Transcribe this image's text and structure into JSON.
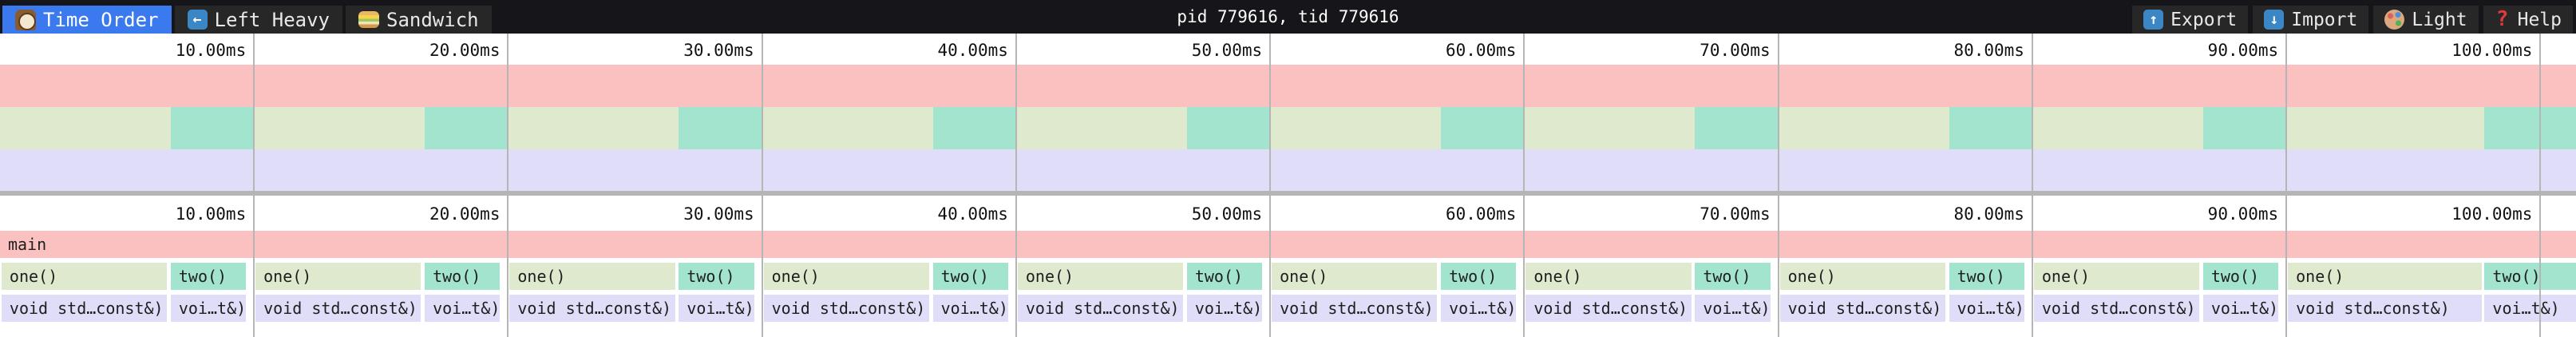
{
  "toolbar": {
    "tabs": [
      {
        "label": "Time Order",
        "icon": "clock-icon",
        "active": true
      },
      {
        "label": "Left Heavy",
        "icon": "left-arrow-icon",
        "active": false
      },
      {
        "label": "Sandwich",
        "icon": "sandwich-icon",
        "active": false
      }
    ],
    "title": "pid 779616, tid 779616",
    "actions": [
      {
        "label": "Export",
        "icon": "export-icon"
      },
      {
        "label": "Import",
        "icon": "import-icon"
      },
      {
        "label": "Light",
        "icon": "palette-icon"
      },
      {
        "label": "Help",
        "icon": "help-icon"
      }
    ]
  },
  "colors": {
    "accent": "#3B79EF",
    "toolbar_bg": "#15151A",
    "tab_bg": "#272727",
    "frame_main": "#FBC1C1",
    "frame_one": "#DFE9CE",
    "frame_two": "#A2E4CE",
    "frame_child": "#DFDDF8",
    "gridline": "#B5B5B5",
    "divider": "#B5B5B5",
    "frame_text": "#1E1E1E"
  },
  "chart_data": {
    "type": "flamegraph",
    "time_unit": "ms",
    "visible_range_ms": [
      0,
      101.4
    ],
    "tick_interval_ms": 10,
    "grid": true,
    "ticks": [
      {
        "ms": 10,
        "label": "10.00ms"
      },
      {
        "ms": 20,
        "label": "20.00ms"
      },
      {
        "ms": 30,
        "label": "30.00ms"
      },
      {
        "ms": 40,
        "label": "40.00ms"
      },
      {
        "ms": 50,
        "label": "50.00ms"
      },
      {
        "ms": 60,
        "label": "60.00ms"
      },
      {
        "ms": 70,
        "label": "70.00ms"
      },
      {
        "ms": 80,
        "label": "80.00ms"
      },
      {
        "ms": 90,
        "label": "90.00ms"
      },
      {
        "ms": 100,
        "label": "100.00ms"
      }
    ],
    "labels": {
      "root": "main",
      "one": "one()",
      "two": "two()",
      "one_child": "void std…const&)",
      "two_child": "voi…t&)"
    },
    "root_frame_ms": [
      0,
      101.5
    ],
    "pairs": [
      {
        "one": [
          0.06,
          6.57
        ],
        "two": [
          6.72,
          9.68
        ]
      },
      {
        "one": [
          10.06,
          16.57
        ],
        "two": [
          16.72,
          19.68
        ]
      },
      {
        "one": [
          20.06,
          26.57
        ],
        "two": [
          26.72,
          29.68
        ]
      },
      {
        "one": [
          30.06,
          36.57
        ],
        "two": [
          36.72,
          39.68
        ]
      },
      {
        "one": [
          40.06,
          46.57
        ],
        "two": [
          46.72,
          49.68
        ]
      },
      {
        "one": [
          50.06,
          56.57
        ],
        "two": [
          56.72,
          59.68
        ]
      },
      {
        "one": [
          60.06,
          66.57
        ],
        "two": [
          66.72,
          69.68
        ]
      },
      {
        "one": [
          70.06,
          76.57
        ],
        "two": [
          76.72,
          79.68
        ]
      },
      {
        "one": [
          80.06,
          86.57
        ],
        "two": [
          86.72,
          89.68
        ]
      },
      {
        "one": [
          90.06,
          97.7
        ],
        "two": [
          97.8,
          101.5
        ]
      }
    ],
    "minimap_two_chunks_ms": [
      [
        6.72,
        10
      ],
      [
        16.72,
        20
      ],
      [
        26.72,
        30
      ],
      [
        36.72,
        40
      ],
      [
        46.72,
        50
      ],
      [
        56.72,
        60
      ],
      [
        66.72,
        70
      ],
      [
        76.72,
        80
      ],
      [
        86.72,
        90
      ],
      [
        97.8,
        101.5
      ]
    ]
  }
}
